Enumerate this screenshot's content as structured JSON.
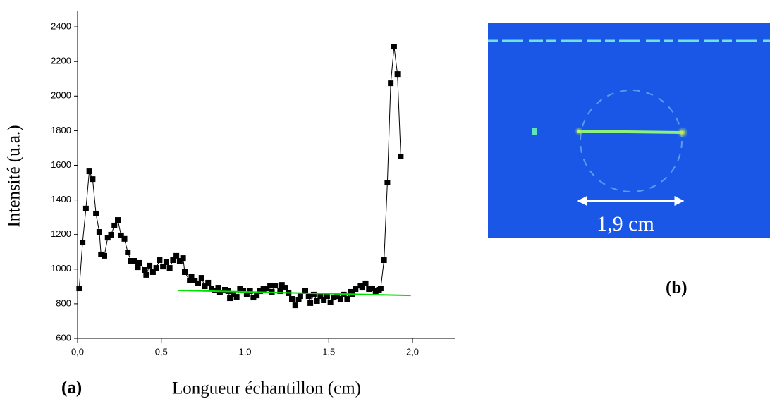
{
  "chart_data": {
    "type": "line",
    "x_label": "Longueur échantillon (cm)",
    "y_label": "Intensité (u.a.)",
    "xlim": [
      0,
      2.25
    ],
    "ylim": [
      600,
      2494
    ],
    "xticks": [
      {
        "value": 0,
        "label": "0,0"
      },
      {
        "value": 0.5,
        "label": "0,5"
      },
      {
        "value": 1,
        "label": "1,0"
      },
      {
        "value": 1.5,
        "label": "1,5"
      },
      {
        "value": 2,
        "label": "2,0"
      }
    ],
    "yticks": [
      600,
      800,
      1000,
      1200,
      1400,
      1600,
      1800,
      2000,
      2200,
      2400
    ],
    "series": [
      {
        "color": "#000000",
        "marker": "square",
        "x": [
          0.01,
          0.03,
          0.05,
          0.07,
          0.09,
          0.11,
          0.13,
          0.14,
          0.16,
          0.18,
          0.2,
          0.22,
          0.24,
          0.26,
          0.28,
          0.3,
          0.32,
          0.34,
          0.36,
          0.37,
          0.4,
          0.41,
          0.43,
          0.45,
          0.47,
          0.49,
          0.51,
          0.53,
          0.55,
          0.57,
          0.59,
          0.61,
          0.63,
          0.64,
          0.67,
          0.68,
          0.7,
          0.72,
          0.74,
          0.76,
          0.78,
          0.8,
          0.82,
          0.84,
          0.85,
          0.88,
          0.9,
          0.91,
          0.93,
          0.95,
          0.97,
          0.99,
          1.01,
          1.03,
          1.05,
          1.07,
          1.09,
          1.11,
          1.13,
          1.15,
          1.16,
          1.18,
          1.21,
          1.22,
          1.24,
          1.26,
          1.28,
          1.3,
          1.32,
          1.33,
          1.36,
          1.38,
          1.39,
          1.41,
          1.43,
          1.45,
          1.47,
          1.49,
          1.51,
          1.53,
          1.55,
          1.57,
          1.59,
          1.61,
          1.63,
          1.64,
          1.66,
          1.69,
          1.7,
          1.72,
          1.74,
          1.76,
          1.78,
          1.8,
          1.81,
          1.83,
          1.85,
          1.87,
          1.89,
          1.91,
          1.93
        ],
        "values": [
          889,
          1154,
          1350,
          1565,
          1520,
          1321,
          1215,
          1085,
          1077,
          1182,
          1199,
          1252,
          1284,
          1195,
          1175,
          1097,
          1048,
          1048,
          1011,
          1036,
          995,
          967,
          1020,
          983,
          1007,
          1052,
          1015,
          1040,
          1007,
          1052,
          1077,
          1048,
          1064,
          983,
          934,
          958,
          934,
          918,
          950,
          901,
          922,
          889,
          877,
          893,
          865,
          881,
          873,
          832,
          853,
          840,
          885,
          877,
          853,
          873,
          836,
          848,
          873,
          885,
          889,
          905,
          869,
          905,
          873,
          909,
          893,
          861,
          828,
          791,
          824,
          844,
          873,
          844,
          804,
          853,
          816,
          844,
          820,
          844,
          808,
          836,
          844,
          828,
          853,
          828,
          869,
          853,
          885,
          905,
          893,
          918,
          885,
          889,
          873,
          881,
          889,
          1052,
          1500,
          2074,
          2286,
          2127,
          1651
        ]
      },
      {
        "color": "#00e000",
        "marker": "none",
        "x": [
          0.6,
          1.99
        ],
        "values": [
          877,
          848
        ]
      }
    ]
  },
  "figure": {
    "label_a": "(a)",
    "label_b": "(b)",
    "scale_label": "1,9 cm"
  }
}
